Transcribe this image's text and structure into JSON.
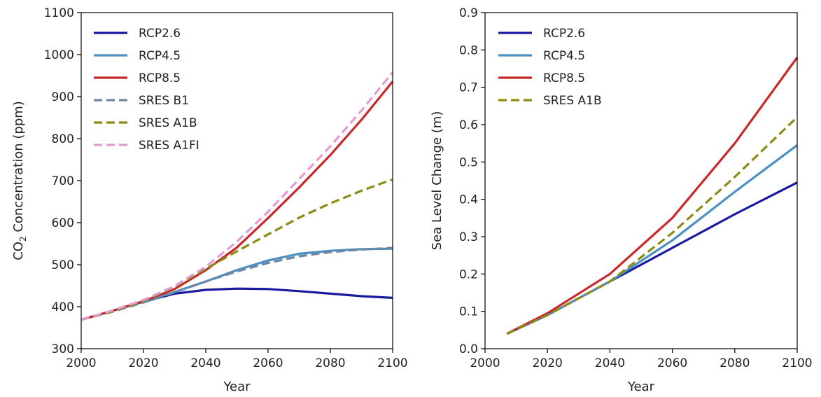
{
  "chart_data": [
    {
      "type": "line",
      "xlabel": "Year",
      "ylabel_prefix": "CO",
      "ylabel_sub": "2",
      "ylabel_suffix": " Concentration (ppm)",
      "xlim": [
        2000,
        2100
      ],
      "ylim": [
        300,
        1100
      ],
      "xticks": [
        "2000",
        "2020",
        "2040",
        "2060",
        "2080",
        "2100"
      ],
      "yticks": [
        "300",
        "400",
        "500",
        "600",
        "700",
        "800",
        "900",
        "1000",
        "1100"
      ],
      "grid": false,
      "legend_position": "top-left",
      "series": [
        {
          "name": "RCP2.6",
          "color": "#1a1aa0",
          "dashed": false,
          "x": [
            2000,
            2010,
            2020,
            2030,
            2040,
            2050,
            2060,
            2070,
            2080,
            2090,
            2100
          ],
          "y": [
            369,
            390,
            412,
            431,
            440,
            443,
            442,
            437,
            431,
            425,
            421
          ]
        },
        {
          "name": "RCP4.5",
          "color": "#4a90c0",
          "dashed": false,
          "x": [
            2000,
            2010,
            2020,
            2030,
            2040,
            2050,
            2060,
            2070,
            2080,
            2090,
            2100
          ],
          "y": [
            369,
            390,
            412,
            435,
            460,
            487,
            510,
            526,
            533,
            537,
            538
          ]
        },
        {
          "name": "RCP8.5",
          "color": "#c8282a",
          "dashed": false,
          "x": [
            2000,
            2010,
            2020,
            2030,
            2040,
            2050,
            2060,
            2070,
            2080,
            2090,
            2100
          ],
          "y": [
            369,
            390,
            413,
            442,
            487,
            541,
            611,
            684,
            761,
            845,
            936
          ]
        },
        {
          "name": "SRES B1",
          "color": "#6f86a6",
          "dashed": true,
          "x": [
            2000,
            2010,
            2020,
            2030,
            2040,
            2050,
            2060,
            2070,
            2080,
            2090,
            2100
          ],
          "y": [
            369,
            388,
            410,
            434,
            460,
            484,
            504,
            520,
            530,
            536,
            540
          ]
        },
        {
          "name": "SRES A1B",
          "color": "#8c8c14",
          "dashed": true,
          "x": [
            2000,
            2010,
            2020,
            2030,
            2040,
            2050,
            2060,
            2070,
            2080,
            2090,
            2100
          ],
          "y": [
            369,
            389,
            414,
            447,
            490,
            532,
            572,
            612,
            646,
            676,
            703
          ]
        },
        {
          "name": "SRES A1FI",
          "color": "#e59ad6",
          "dashed": true,
          "x": [
            2000,
            2010,
            2020,
            2030,
            2040,
            2050,
            2060,
            2070,
            2080,
            2090,
            2100
          ],
          "y": [
            369,
            391,
            416,
            449,
            495,
            555,
            626,
            704,
            782,
            867,
            958
          ]
        }
      ]
    },
    {
      "type": "line",
      "xlabel": "Year",
      "ylabel": "Sea Level Change (m)",
      "xlim": [
        2000,
        2100
      ],
      "ylim": [
        0.0,
        0.9
      ],
      "xticks": [
        "2000",
        "2020",
        "2040",
        "2060",
        "2080",
        "2100"
      ],
      "yticks": [
        "0.0",
        "0.1",
        "0.2",
        "0.3",
        "0.4",
        "0.5",
        "0.6",
        "0.7",
        "0.8",
        "0.9"
      ],
      "grid": false,
      "legend_position": "top-left",
      "series": [
        {
          "name": "RCP2.6",
          "color": "#1a1aa0",
          "dashed": false,
          "x": [
            2007,
            2020,
            2040,
            2060,
            2080,
            2100
          ],
          "y": [
            0.04,
            0.09,
            0.18,
            0.27,
            0.36,
            0.445
          ]
        },
        {
          "name": "RCP4.5",
          "color": "#4a90c0",
          "dashed": false,
          "x": [
            2007,
            2020,
            2040,
            2060,
            2080,
            2100
          ],
          "y": [
            0.04,
            0.09,
            0.18,
            0.29,
            0.42,
            0.545
          ]
        },
        {
          "name": "RCP8.5",
          "color": "#c8282a",
          "dashed": false,
          "x": [
            2007,
            2020,
            2040,
            2060,
            2080,
            2100
          ],
          "y": [
            0.04,
            0.095,
            0.2,
            0.35,
            0.55,
            0.78
          ]
        },
        {
          "name": "SRES A1B",
          "color": "#8c8c14",
          "dashed": true,
          "x": [
            2007,
            2020,
            2040,
            2060,
            2080,
            2100
          ],
          "y": [
            0.04,
            0.09,
            0.18,
            0.31,
            0.46,
            0.62
          ]
        }
      ]
    }
  ]
}
